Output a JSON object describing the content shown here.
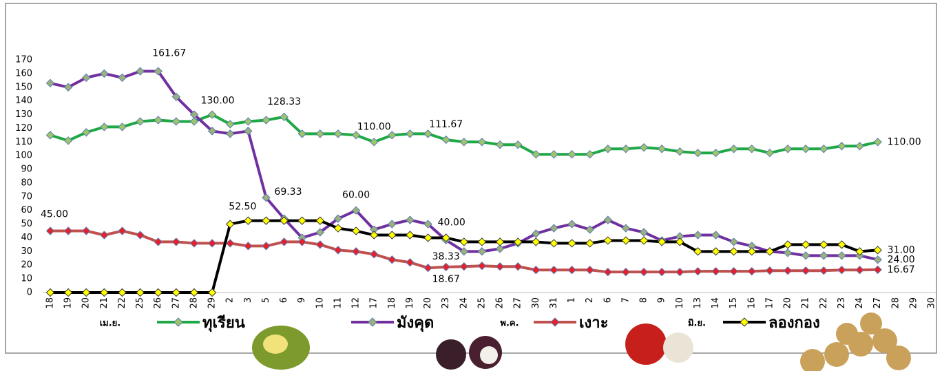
{
  "chart_data": {
    "type": "line",
    "categories": [
      "18",
      "19",
      "20",
      "21",
      "22",
      "25",
      "26",
      "27",
      "28",
      "29",
      "2",
      "3",
      "5",
      "6",
      "9",
      "10",
      "11",
      "12",
      "17",
      "18",
      "19",
      "20",
      "23",
      "24",
      "25",
      "26",
      "27",
      "30",
      "31",
      "1",
      "2",
      "6",
      "7",
      "8",
      "9",
      "10",
      "13",
      "14",
      "15",
      "16",
      "17",
      "20",
      "21",
      "22",
      "23",
      "24",
      "27",
      "28",
      "29",
      "30"
    ],
    "months": [
      "เม.ย.",
      "พ.ค.",
      "มิ.ย."
    ],
    "ylim": [
      0,
      170
    ],
    "yticks": [
      0,
      10,
      20,
      30,
      40,
      50,
      60,
      70,
      80,
      90,
      100,
      110,
      120,
      130,
      140,
      150,
      160,
      170
    ],
    "series": [
      {
        "name": "ทุเรียน",
        "color": "#1fa846",
        "marker_color": "#9bc66a",
        "label_color": "#00a650",
        "values": [
          115,
          111,
          117,
          121,
          121,
          125,
          126,
          125,
          125,
          130,
          123,
          125,
          126,
          128.33,
          116,
          116,
          116,
          115,
          110,
          115,
          116,
          116,
          111.67,
          110,
          110,
          108,
          108,
          101,
          101,
          101,
          101,
          105,
          105,
          106,
          105,
          103,
          102,
          102,
          105,
          105,
          102,
          105,
          105,
          105,
          107,
          107,
          110,
          null,
          null,
          null
        ],
        "value_labels": [
          null,
          null,
          null,
          null,
          null,
          null,
          null,
          null,
          null,
          "130.00",
          null,
          null,
          null,
          "128.33",
          null,
          null,
          null,
          null,
          "110.00",
          null,
          null,
          null,
          "111.67",
          null,
          null,
          null,
          null,
          null,
          null,
          null,
          null,
          null,
          null,
          null,
          null,
          null,
          null,
          null,
          null,
          null,
          null,
          null,
          null,
          null,
          null,
          null,
          "110.00",
          null,
          null,
          null
        ]
      },
      {
        "name": "มังคุด",
        "color": "#7030a0",
        "marker_color": "#9bb07a",
        "label_color": "#7030a0",
        "values": [
          153,
          150,
          157,
          160,
          157,
          161.67,
          161.67,
          143,
          130,
          118,
          116,
          118,
          69.33,
          54,
          40,
          44,
          54,
          60,
          46,
          50,
          53,
          50,
          38.33,
          30,
          30,
          32,
          36,
          43,
          47,
          50,
          46,
          53,
          47,
          44,
          38,
          41,
          42,
          42,
          37,
          34,
          30,
          29,
          27,
          27,
          27,
          27,
          24,
          null,
          null,
          null
        ],
        "value_labels": [
          null,
          null,
          null,
          null,
          null,
          null,
          "161.67",
          null,
          null,
          null,
          null,
          null,
          "69.33",
          null,
          null,
          null,
          null,
          "60.00",
          null,
          null,
          null,
          null,
          "38.33",
          null,
          null,
          null,
          null,
          null,
          null,
          null,
          null,
          null,
          null,
          null,
          null,
          null,
          null,
          null,
          null,
          null,
          null,
          null,
          null,
          null,
          null,
          null,
          "24.00",
          null,
          null,
          null
        ]
      },
      {
        "name": "เงาะ",
        "color": "#c0504d",
        "marker_color": "#e8202a",
        "label_color": "#ff0000",
        "values": [
          45,
          45,
          45,
          42,
          45,
          42,
          37,
          37,
          36,
          36,
          36,
          34,
          34,
          37,
          37,
          35,
          31,
          30,
          28,
          24,
          22,
          18,
          18.67,
          19,
          19.5,
          19,
          19,
          16.5,
          16.5,
          16.5,
          16.5,
          15,
          15,
          15,
          15,
          15,
          15.5,
          15.5,
          15.5,
          15.5,
          16,
          16,
          16,
          16,
          16.5,
          16.5,
          16.67,
          null,
          null,
          null
        ],
        "value_labels": [
          "45.00",
          null,
          null,
          null,
          null,
          null,
          null,
          null,
          null,
          null,
          null,
          null,
          null,
          null,
          null,
          null,
          null,
          null,
          null,
          null,
          null,
          null,
          "18.67",
          null,
          null,
          null,
          null,
          null,
          null,
          null,
          null,
          null,
          null,
          null,
          null,
          null,
          null,
          null,
          null,
          null,
          null,
          null,
          null,
          null,
          null,
          null,
          "16.67",
          null,
          null,
          null
        ]
      },
      {
        "name": "ลองกอง",
        "color": "#000000",
        "marker_color": "#ffff00",
        "label_color": "#000000",
        "values": [
          0,
          0,
          0,
          0,
          0,
          0,
          0,
          0,
          0,
          0,
          50,
          52.5,
          52.5,
          52.5,
          52.5,
          52.5,
          47,
          45,
          42,
          42,
          42,
          40,
          40,
          37,
          37,
          37,
          37,
          37,
          36,
          36,
          36,
          38,
          38,
          38,
          37,
          37,
          30,
          30,
          30,
          30,
          30,
          35,
          35,
          35,
          35,
          30,
          31,
          null,
          null,
          null
        ],
        "value_labels": [
          null,
          null,
          null,
          null,
          null,
          null,
          null,
          null,
          null,
          null,
          null,
          "52.50",
          null,
          null,
          null,
          null,
          null,
          null,
          null,
          null,
          null,
          null,
          "40.00",
          null,
          null,
          null,
          null,
          null,
          null,
          null,
          null,
          null,
          null,
          null,
          null,
          null,
          null,
          null,
          null,
          null,
          null,
          null,
          null,
          null,
          null,
          null,
          "31.00",
          null,
          null,
          null
        ]
      }
    ]
  }
}
